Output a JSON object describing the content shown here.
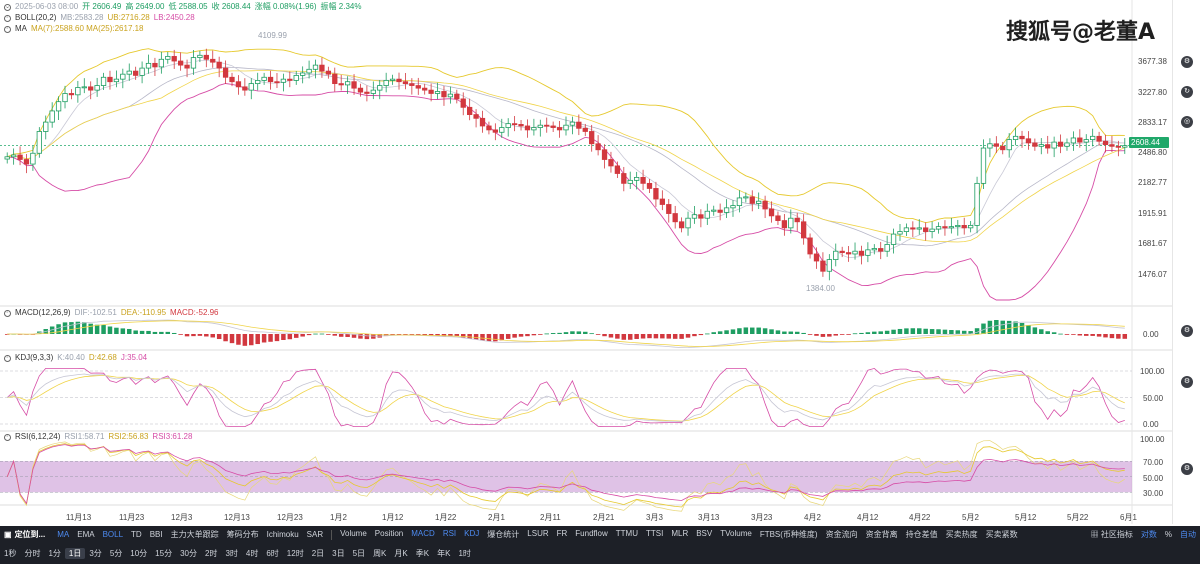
{
  "header": {
    "line1": [
      "2025-06-03 08:00",
      "开 2606.49",
      "高 2649.00",
      "低 2588.05",
      "收 2608.44",
      "涨幅 0.08%(1.96)",
      "振幅 2.34%"
    ],
    "boll_label": "BOLL(20,2)",
    "boll_mb": "MB:2583.28",
    "boll_ub": "UB:2716.28",
    "boll_lb": "LB:2450.28",
    "ma_label": "MA",
    "ma_values": "MA(7):2588.60 MA(25):2617.18"
  },
  "watermark": "搜狐号@老董A",
  "price_axis": [
    "3677.38",
    "3227.80",
    "2833.17",
    "2486.80",
    "2182.77",
    "1915.91",
    "1681.67",
    "1476.07"
  ],
  "current_price": "2608.44",
  "annotations": {
    "high": "4109.99",
    "low": "1384.00"
  },
  "macd": {
    "label": "MACD(12,26,9)",
    "dif": "DIF:-102.51",
    "dea": "DEA:-110.95",
    "macd": "MACD:-52.96",
    "axis": [
      "0.00"
    ]
  },
  "kdj": {
    "label": "KDJ(9,3,3)",
    "k": "K:40.40",
    "d": "D:42.68",
    "j": "J:35.04",
    "axis": [
      "100.00",
      "50.00",
      "0.00"
    ]
  },
  "rsi": {
    "label": "RSI(6,12,24)",
    "r1": "RSI1:58.71",
    "r2": "RSI2:56.83",
    "r3": "RSI3:61.28",
    "axis": [
      "100.00",
      "70.00",
      "50.00",
      "30.00"
    ]
  },
  "time_axis": [
    "11月13",
    "11月23",
    "12月3",
    "12月13",
    "12月23",
    "1月2",
    "1月12",
    "1月22",
    "2月1",
    "2月11",
    "2月21",
    "3月3",
    "3月13",
    "3月23",
    "4月2",
    "4月12",
    "4月22",
    "5月2",
    "5月12",
    "5月22",
    "6月1"
  ],
  "toolbar1": {
    "locate": "定位到...",
    "indicators": [
      "MA",
      "EMA",
      "BOLL",
      "TD",
      "BBI",
      "主力大单跟踪",
      "筹码分布",
      "Ichimoku",
      "SAR"
    ],
    "sub_indicators": [
      "Volume",
      "Position",
      "MACD",
      "RSI",
      "KDJ",
      "爆仓统计",
      "LSUR",
      "FR",
      "Fundflow",
      "TTMU",
      "TTSI",
      "MLR",
      "BSV",
      "TVolume",
      "FTBS(币种维度)",
      "资金流向",
      "资金背离",
      "持仓差值",
      "买卖热度",
      "买卖紧数"
    ],
    "community": "社区指标",
    "log": "对数",
    "pct": "%",
    "auto": "自动"
  },
  "toolbar2": {
    "intervals": [
      "1秒",
      "分时",
      "1分",
      "1日",
      "3分",
      "5分",
      "10分",
      "15分",
      "30分",
      "2时",
      "3时",
      "4时",
      "6时",
      "12时",
      "2日",
      "3日",
      "5日",
      "周K",
      "月K",
      "季K",
      "年K",
      "1时"
    ],
    "selected": "1日"
  },
  "colors": {
    "up": "#1e9e62",
    "down": "#d2383f",
    "boll_mb": "#b7b7c8",
    "boll_ub": "#e6c92e",
    "boll_lb": "#d64ca6",
    "ma7": "#c9c9d6",
    "ma25": "#f0d44a",
    "rsi_band": "#c48fd1"
  },
  "chart_data": {
    "type": "candlestick",
    "title": "",
    "x_start": "2024-11-04",
    "price_range": [
      1300,
      4200
    ],
    "closes": [
      2480,
      2500,
      2450,
      2400,
      2520,
      2780,
      2900,
      3050,
      3180,
      3300,
      3280,
      3390,
      3400,
      3350,
      3420,
      3550,
      3480,
      3520,
      3600,
      3650,
      3580,
      3700,
      3780,
      3720,
      3850,
      3900,
      3820,
      3750,
      3700,
      3880,
      3920,
      3850,
      3800,
      3700,
      3550,
      3480,
      3400,
      3350,
      3450,
      3500,
      3550,
      3480,
      3470,
      3520,
      3500,
      3580,
      3620,
      3680,
      3750,
      3650,
      3600,
      3450,
      3430,
      3480,
      3380,
      3320,
      3300,
      3350,
      3420,
      3500,
      3520,
      3480,
      3450,
      3420,
      3380,
      3350,
      3300,
      3330,
      3250,
      3290,
      3220,
      3100,
      3000,
      2950,
      2850,
      2800,
      2770,
      2830,
      2880,
      2870,
      2850,
      2800,
      2830,
      2860,
      2850,
      2830,
      2800,
      2860,
      2900,
      2820,
      2780,
      2630,
      2560,
      2450,
      2380,
      2300,
      2200,
      2230,
      2260,
      2200,
      2150,
      2050,
      2000,
      1920,
      1850,
      1800,
      1880,
      1910,
      1880,
      1940,
      1950,
      1930,
      1970,
      1990,
      2060,
      2070,
      2010,
      2030,
      1960,
      1900,
      1860,
      1800,
      1880,
      1850,
      1720,
      1600,
      1550,
      1480,
      1560,
      1620,
      1610,
      1600,
      1620,
      1590,
      1630,
      1640,
      1620,
      1670,
      1750,
      1770,
      1800,
      1790,
      1800,
      1770,
      1790,
      1810,
      1800,
      1810,
      1820,
      1800,
      1820,
      2200,
      2580,
      2630,
      2600,
      2560,
      2680,
      2720,
      2690,
      2640,
      2600,
      2620,
      2580,
      2650,
      2600,
      2640,
      2700,
      2650,
      2680,
      2720,
      2660,
      2620,
      2600,
      2590,
      2608
    ],
    "series": [
      {
        "name": "MACD",
        "values": [
          -40,
          -30,
          10,
          40,
          50,
          60,
          55,
          40,
          20,
          10,
          -20,
          -40,
          -60,
          -70,
          -50,
          -30,
          -20,
          -10,
          5,
          10,
          -10,
          -20,
          -30,
          -20,
          -10,
          10,
          20,
          30,
          20,
          10,
          30,
          40,
          60,
          80,
          90,
          80,
          60,
          40,
          20,
          -10,
          -20,
          -30,
          -40,
          -53
        ]
      },
      {
        "name": "KDJ",
        "values": []
      },
      {
        "name": "RSI",
        "values": []
      }
    ],
    "legend": "top-left"
  }
}
